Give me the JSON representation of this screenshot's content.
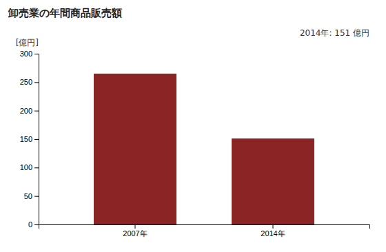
{
  "chart_data": {
    "type": "bar",
    "title": "卸売業の年間商品販売額",
    "ylabel": "[億円]",
    "categories": [
      "2007年",
      "2014年"
    ],
    "values": [
      265,
      151
    ],
    "color": "#8B2525",
    "annotation": "2014年: 151 億円",
    "ylim": [
      0,
      300
    ],
    "yticks": [
      0,
      50,
      100,
      150,
      200,
      250,
      300
    ],
    "grid": false
  }
}
